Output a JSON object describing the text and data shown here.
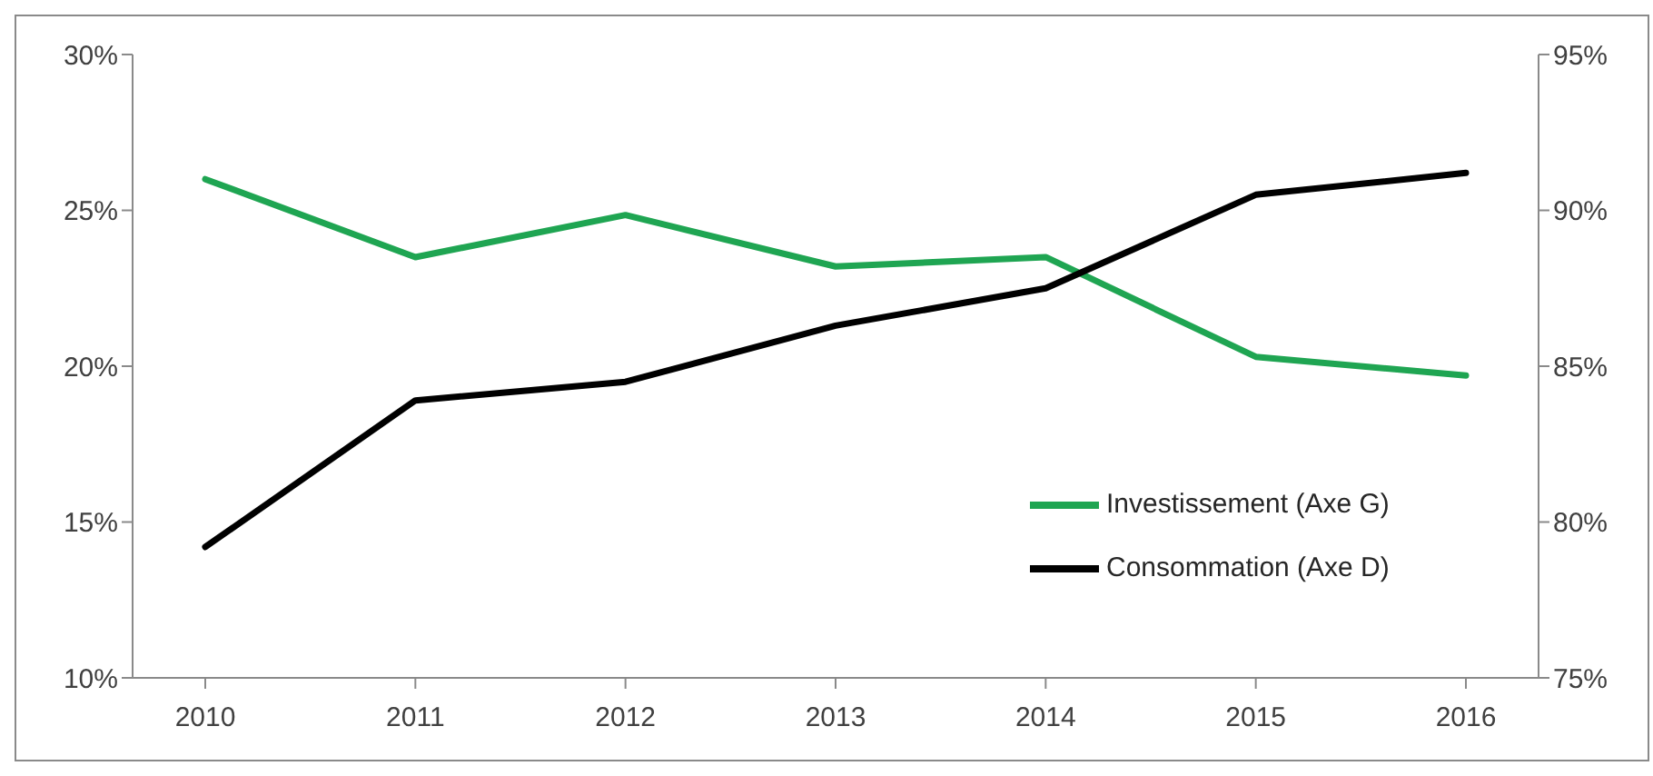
{
  "chart_data": {
    "type": "line",
    "categories": [
      "2010",
      "2011",
      "2012",
      "2013",
      "2014",
      "2015",
      "2016"
    ],
    "series": [
      {
        "name": "Investissement (Axe G)",
        "color": "#1fa552",
        "values": [
          26.0,
          23.5,
          24.85,
          23.2,
          23.5,
          20.3,
          19.7
        ]
      },
      {
        "name": "Consommation (Axe D)",
        "color": "#000000",
        "axis": "y2",
        "values": [
          79.2,
          83.9,
          84.5,
          86.3,
          87.5,
          90.5,
          91.2
        ]
      }
    ],
    "ylim": [
      10,
      30
    ],
    "yticks": [
      {
        "value": 10,
        "label": "10%"
      },
      {
        "value": 15,
        "label": "15%"
      },
      {
        "value": 20,
        "label": "20%"
      },
      {
        "value": 25,
        "label": "25%"
      },
      {
        "value": 30,
        "label": "30%"
      }
    ],
    "y2lim": [
      75,
      95
    ],
    "y2ticks": [
      {
        "value": 75,
        "label": "75%"
      },
      {
        "value": 80,
        "label": "80%"
      },
      {
        "value": 85,
        "label": "85%"
      },
      {
        "value": 90,
        "label": "90%"
      },
      {
        "value": 95,
        "label": "95%"
      }
    ],
    "grid": false,
    "legend": "right",
    "marker": "none",
    "line_style": "solid"
  }
}
